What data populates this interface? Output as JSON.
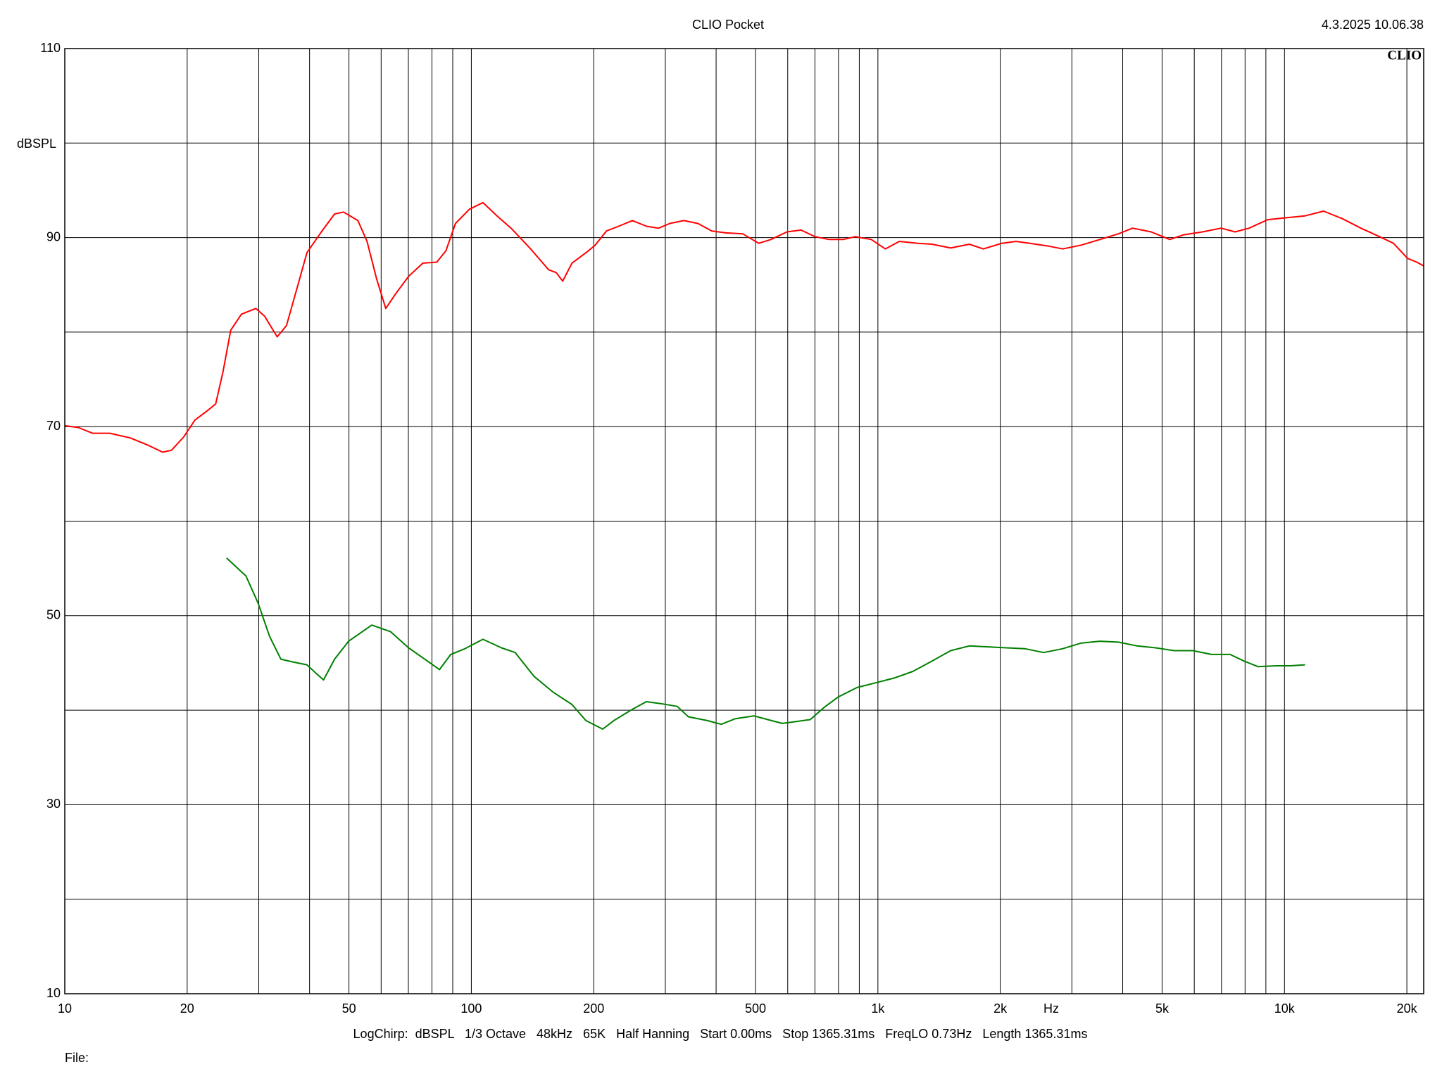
{
  "chart_data": {
    "type": "line",
    "title": "CLIO Pocket",
    "timestamp": "4.3.2025 10.06.38",
    "logo": "CLIO",
    "y_label": "dBSPL",
    "x_label": "Hz",
    "footer": "LogChirp:  dBSPL   1/3 Octave   48kHz   65K   Half Hanning   Start 0.00ms   Stop 1365.31ms   FreqLO 0.73Hz   Length 1365.31ms",
    "file_label": "File:",
    "x_log": true,
    "grid": true,
    "xlim": [
      10,
      22000
    ],
    "ylim": [
      10,
      110
    ],
    "xticks": [
      10,
      20,
      50,
      100,
      200,
      500,
      {
        "value": 1000,
        "label": "1k"
      },
      {
        "value": 2000,
        "label": "2k"
      },
      {
        "value": 5000,
        "label": "5k"
      },
      {
        "value": 10000,
        "label": "10k"
      },
      {
        "value": 20000,
        "label": "20k"
      }
    ],
    "x_minor_grid": [
      30,
      40,
      60,
      70,
      80,
      90,
      300,
      400,
      600,
      700,
      800,
      900,
      3000,
      4000,
      6000,
      7000,
      8000,
      9000
    ],
    "yticks": [
      10,
      30,
      50,
      70,
      90,
      110
    ],
    "y_minor_grid": [
      20,
      40,
      60,
      80,
      100
    ],
    "series": [
      {
        "color": "#ff0000",
        "x": [
          10,
          10.8,
          11.7,
          12.9,
          14.5,
          16.1,
          17.4,
          18.3,
          19.6,
          20.9,
          22.3,
          23.5,
          24.5,
          25.6,
          27.2,
          29.5,
          31,
          33.3,
          35.1,
          37.4,
          39.4,
          42.6,
          46.1,
          48.5,
          52.6,
          55.4,
          58.5,
          61.6,
          65,
          70.1,
          76,
          82.2,
          86.6,
          91.4,
          98.9,
          106.8,
          115.6,
          125.2,
          139.3,
          154.9,
          161.7,
          167.8,
          176.8,
          191.4,
          201.7,
          214.9,
          230.3,
          249,
          269.6,
          288.8,
          307.8,
          333.1,
          360.6,
          390.5,
          422.7,
          465,
          509.2,
          545.6,
          597.5,
          646.9,
          700.5,
          758.4,
          821.2,
          879.8,
          963.4,
          1043,
          1129,
          1255,
          1359,
          1510,
          1678,
          1816,
          2018,
          2185,
          2366,
          2629,
          2846,
          3163,
          3515,
          3906,
          4229,
          4700,
          5222,
          5654,
          6284,
          6983,
          7561,
          8186,
          9097,
          10108,
          11234,
          12484,
          13873,
          15417,
          17132,
          18543,
          20072,
          21160,
          22000
        ],
        "values": [
          70.1,
          69.9,
          69.3,
          69.3,
          68.8,
          68.0,
          67.3,
          67.5,
          68.9,
          70.7,
          71.6,
          72.4,
          75.8,
          80.2,
          81.9,
          82.5,
          81.7,
          79.5,
          80.7,
          84.9,
          88.4,
          90.5,
          92.5,
          92.7,
          91.8,
          89.6,
          85.6,
          82.5,
          84.0,
          85.9,
          87.3,
          87.4,
          88.6,
          91.5,
          93.0,
          93.7,
          92.3,
          91.0,
          88.9,
          86.6,
          86.3,
          85.4,
          87.3,
          88.4,
          89.2,
          90.7,
          91.2,
          91.8,
          91.2,
          91.0,
          91.5,
          91.8,
          91.5,
          90.7,
          90.5,
          90.4,
          89.4,
          89.8,
          90.6,
          90.8,
          90.1,
          89.8,
          89.8,
          90.1,
          89.8,
          88.8,
          89.6,
          89.4,
          89.3,
          88.9,
          89.3,
          88.8,
          89.4,
          89.6,
          89.4,
          89.1,
          88.8,
          89.2,
          89.8,
          90.4,
          91.0,
          90.6,
          89.8,
          90.3,
          90.6,
          91.0,
          90.6,
          91.0,
          91.9,
          92.1,
          92.3,
          92.8,
          92.0,
          91.0,
          90.1,
          89.4,
          87.8,
          87.4,
          87.0
        ]
      },
      {
        "color": "#008000",
        "x": [
          25,
          27.9,
          29.9,
          31.9,
          34,
          36.4,
          39.4,
          41.5,
          43.3,
          46.1,
          49.9,
          56.9,
          63.3,
          70.1,
          78,
          83.5,
          89,
          96.4,
          106.8,
          118.6,
          128.2,
          142.5,
          159,
          176.8,
          191.4,
          210.4,
          224.1,
          249,
          269.6,
          291.8,
          320.9,
          341.9,
          380.6,
          411.9,
          445.9,
          495.3,
          536,
          581.5,
          629.5,
          681.5,
          737.8,
          798.8,
          888.8,
          987.5,
          1097,
          1219,
          1359,
          1510,
          1678,
          1864,
          2071,
          2302,
          2557,
          2846,
          3163,
          3515,
          3906,
          4339,
          4821,
          5357,
          5952,
          6613,
          7347,
          7956,
          8613,
          9572,
          10364,
          11234
        ],
        "values": [
          56.1,
          54.2,
          51.3,
          47.8,
          45.4,
          45.1,
          44.8,
          43.9,
          43.2,
          45.4,
          47.3,
          49.0,
          48.3,
          46.6,
          45.2,
          44.3,
          45.9,
          46.5,
          47.5,
          46.6,
          46.1,
          43.6,
          41.9,
          40.6,
          38.9,
          38.0,
          38.9,
          40.1,
          40.9,
          40.7,
          40.4,
          39.3,
          38.9,
          38.5,
          39.1,
          39.4,
          39.0,
          38.6,
          38.8,
          39.0,
          40.3,
          41.4,
          42.4,
          42.9,
          43.4,
          44.1,
          45.2,
          46.3,
          46.8,
          46.7,
          46.6,
          46.5,
          46.1,
          46.5,
          47.1,
          47.3,
          47.2,
          46.8,
          46.6,
          46.3,
          46.3,
          45.9,
          45.9,
          45.2,
          44.6,
          44.7,
          44.7,
          44.8
        ]
      }
    ]
  }
}
